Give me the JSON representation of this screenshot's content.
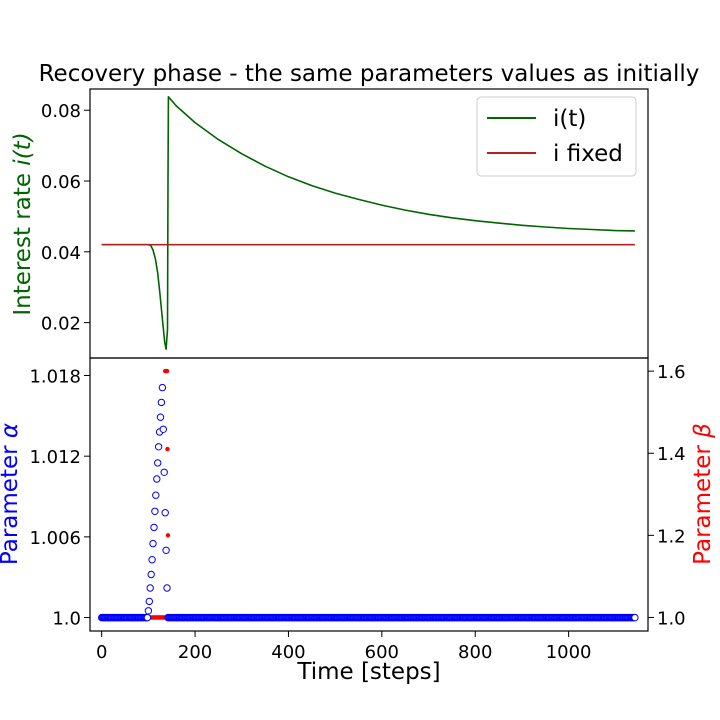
{
  "chart_data": [
    {
      "type": "line",
      "title": "Recovery phase - the same parameters values as initially",
      "ylabel": "Interest rate",
      "ylabel_symbol": "i(t)",
      "ylabel_color": "#006400",
      "ylim": [
        0.01,
        0.086
      ],
      "yticks": [
        0.02,
        0.04,
        0.06,
        0.08
      ],
      "ytick_labels": [
        "0.02",
        "0.04",
        "0.06",
        "0.08"
      ],
      "xlim": [
        -25,
        1170
      ],
      "legend_position": "top-right",
      "series": [
        {
          "name": "i(t)",
          "color": "#006400",
          "x": [
            0,
            20,
            40,
            60,
            80,
            90,
            100,
            105,
            110,
            115,
            120,
            125,
            130,
            135,
            138,
            141,
            142,
            143,
            160,
            200,
            250,
            300,
            350,
            400,
            450,
            500,
            550,
            600,
            650,
            700,
            750,
            800,
            850,
            900,
            950,
            1000,
            1050,
            1100,
            1142
          ],
          "values": [
            0.042,
            0.042,
            0.042,
            0.042,
            0.042,
            0.042,
            0.042,
            0.0418,
            0.0405,
            0.038,
            0.034,
            0.028,
            0.021,
            0.0145,
            0.0125,
            0.018,
            0.06,
            0.0838,
            0.0812,
            0.0765,
            0.0717,
            0.0677,
            0.0642,
            0.0612,
            0.0587,
            0.0566,
            0.0548,
            0.0532,
            0.0518,
            0.0506,
            0.0496,
            0.0488,
            0.0481,
            0.0475,
            0.047,
            0.0466,
            0.0463,
            0.046,
            0.0459
          ]
        },
        {
          "name": "i fixed",
          "color": "#b22222",
          "x": [
            0,
            1142
          ],
          "values": [
            0.042,
            0.042
          ]
        }
      ]
    },
    {
      "type": "scatter",
      "xlabel": "Time [steps]",
      "xlim": [
        -25,
        1170
      ],
      "xticks": [
        0,
        200,
        400,
        600,
        800,
        1000
      ],
      "xtick_labels": [
        "0",
        "200",
        "400",
        "600",
        "800",
        "1000"
      ],
      "left_axis": {
        "label": "Parameter",
        "symbol": "α",
        "color": "#0000ff",
        "ylim": [
          0.999,
          1.0193
        ],
        "yticks": [
          1.0,
          1.006,
          1.012,
          1.018
        ],
        "ytick_labels": [
          "1.0",
          "1.006",
          "1.012",
          "1.018"
        ]
      },
      "right_axis": {
        "label": "Parameter",
        "symbol": "β",
        "color": "#ff0000",
        "ylim": [
          0.967,
          1.632
        ],
        "yticks": [
          1.0,
          1.2,
          1.4,
          1.6
        ],
        "ytick_labels": [
          "1.0",
          "1.2",
          "1.4",
          "1.6"
        ]
      },
      "series": [
        {
          "name": "alpha",
          "axis": "left",
          "marker": "open-circle",
          "color": "#0000ff",
          "x": [
            0,
            20,
            40,
            60,
            80,
            98,
            100,
            102,
            104,
            106,
            108,
            110,
            112,
            114,
            116,
            118,
            120,
            122,
            124,
            126,
            128,
            130,
            132,
            134,
            136,
            138,
            140,
            142,
            150,
            200,
            300,
            400,
            500,
            600,
            700,
            800,
            900,
            1000,
            1100,
            1142
          ],
          "values": [
            1.0,
            1.0,
            1.0,
            1.0,
            1.0,
            1.0,
            1.0005,
            1.0012,
            1.0022,
            1.0032,
            1.0043,
            1.0055,
            1.0067,
            1.0079,
            1.0091,
            1.0103,
            1.0115,
            1.0127,
            1.0138,
            1.0149,
            1.016,
            1.0171,
            1.014,
            1.0108,
            1.0078,
            1.005,
            1.0022,
            1.0,
            1.0,
            1.0,
            1.0,
            1.0,
            1.0,
            1.0,
            1.0,
            1.0,
            1.0,
            1.0,
            1.0,
            1.0
          ]
        },
        {
          "name": "beta",
          "axis": "right",
          "marker": "filled-circle",
          "color": "#ff0000",
          "x": [
            0,
            40,
            80,
            120,
            135,
            136,
            138,
            140,
            141,
            142,
            144,
            160,
            200,
            300,
            400,
            500,
            600,
            700,
            800,
            900,
            1000,
            1100,
            1142
          ],
          "values": [
            1.0,
            1.0,
            1.0,
            1.0,
            1.0,
            1.6,
            1.6,
            1.6,
            1.41,
            1.2,
            1.0,
            1.0,
            1.0,
            1.0,
            1.0,
            1.0,
            1.0,
            1.0,
            1.0,
            1.0,
            1.0,
            1.0,
            1.0
          ]
        }
      ]
    }
  ]
}
